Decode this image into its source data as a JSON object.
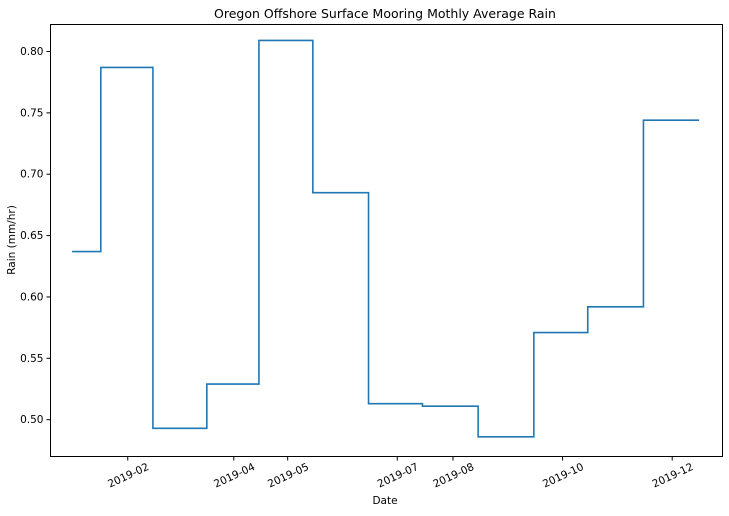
{
  "chart_data": {
    "type": "line",
    "step": "post",
    "title": "Oregon Offshore Surface Mooring Mothly Average Rain",
    "xlabel": "Date",
    "ylabel": "Rain (mm/hr)",
    "x_ticks": [
      "2019-02",
      "2019-04",
      "2019-05",
      "2019-07",
      "2019-08",
      "2019-10",
      "2019-12"
    ],
    "y_ticks": [
      "0.50",
      "0.55",
      "0.60",
      "0.65",
      "0.70",
      "0.75",
      "0.80"
    ],
    "ylim": [
      0.47,
      0.822
    ],
    "grid": false,
    "series": [
      {
        "color": "#1f77b4",
        "x": [
          "2019-01-01",
          "2019-01-17",
          "2019-02-15",
          "2019-03-17",
          "2019-04-15",
          "2019-05-15",
          "2019-06-15",
          "2019-07-15",
          "2019-08-15",
          "2019-09-15",
          "2019-10-15",
          "2019-11-15"
        ],
        "y": [
          0.637,
          0.787,
          0.493,
          0.529,
          0.809,
          0.685,
          0.513,
          0.511,
          0.486,
          0.571,
          0.592,
          0.744
        ]
      }
    ]
  }
}
